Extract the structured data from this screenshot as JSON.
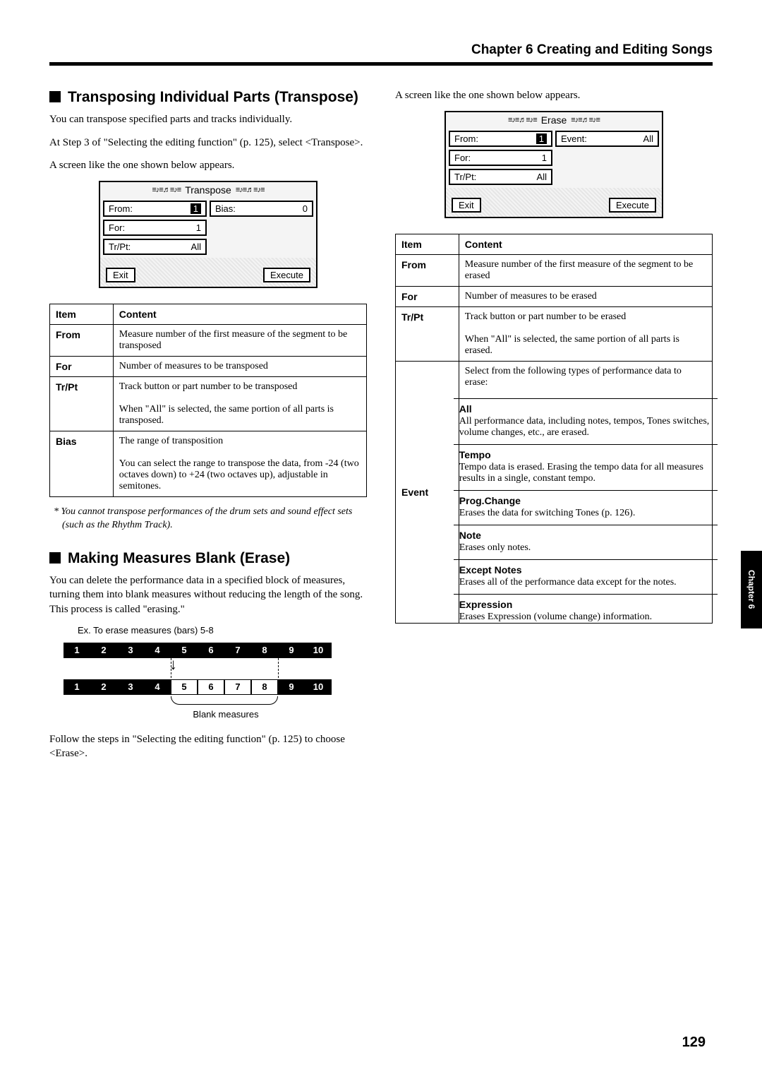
{
  "chapter_heading": "Chapter 6 Creating and Editing Songs",
  "transpose": {
    "heading": "Transposing Individual Parts (Transpose)",
    "intro": "You can transpose specified parts and tracks individually.",
    "step_ref": "At Step 3 of \"Selecting the editing function\" (p. 125), select <Transpose>.",
    "screen_intro": "A screen like the one shown below appears.",
    "lcd": {
      "title": "Transpose",
      "from_label": "From:",
      "from_value": "1",
      "for_label": "For:",
      "for_value": "1",
      "trpt_label": "Tr/Pt:",
      "trpt_value": "All",
      "bias_label": "Bias:",
      "bias_value": "0",
      "exit_label": "Exit",
      "execute_label": "Execute"
    },
    "table_header_item": "Item",
    "table_header_content": "Content",
    "rows": {
      "from": {
        "item": "From",
        "content": "Measure number of the first measure of the segment to be transposed"
      },
      "for": {
        "item": "For",
        "content": "Number of measures to be transposed"
      },
      "trpt": {
        "item": "Tr/Pt",
        "content1": "Track button or part number to be transposed",
        "content2": "When \"All\" is selected, the same portion of all parts is transposed."
      },
      "bias": {
        "item": "Bias",
        "content1": "The range of transposition",
        "content2": "You can select the range to transpose the data, from -24 (two octaves down) to +24 (two octaves up), adjustable in semitones."
      }
    },
    "footnote": "*  You cannot transpose performances of the drum sets and sound effect sets (such as the Rhythm Track)."
  },
  "erase": {
    "heading": "Making Measures Blank (Erase)",
    "intro": "You can delete the performance data in a specified block of measures, turning them into blank measures without reducing the length of the song. This process is called \"erasing.\"",
    "example_caption": "Ex. To erase measures (bars) 5-8",
    "row1": [
      "1",
      "2",
      "3",
      "4",
      "5",
      "6",
      "7",
      "8",
      "9",
      "10"
    ],
    "row2": [
      "1",
      "2",
      "3",
      "4",
      "5",
      "6",
      "7",
      "8",
      "9",
      "10"
    ],
    "brace_label": "Blank measures",
    "follow": "Follow the steps in \"Selecting the editing function\" (p. 125) to choose <Erase>.",
    "screen_intro": "A screen like the one shown below appears.",
    "lcd": {
      "title": "Erase",
      "from_label": "From:",
      "from_value": "1",
      "for_label": "For:",
      "for_value": "1",
      "trpt_label": "Tr/Pt:",
      "trpt_value": "All",
      "event_label": "Event:",
      "event_value": "All",
      "exit_label": "Exit",
      "execute_label": "Execute"
    },
    "table_header_item": "Item",
    "table_header_content": "Content",
    "rows": {
      "from": {
        "item": "From",
        "content": "Measure number of the first measure of the segment to be erased"
      },
      "for": {
        "item": "For",
        "content": "Number of measures to be erased"
      },
      "trpt": {
        "item": "Tr/Pt",
        "content1": "Track button or part number to be erased",
        "content2": "When \"All\" is selected, the same portion of all parts is erased."
      },
      "event": {
        "item": "Event",
        "intro": "Select from the following types of performance data to erase:",
        "all_t": "All",
        "all_d": "All performance data, including notes, tempos, Tones switches, volume changes, etc., are erased.",
        "tempo_t": "Tempo",
        "tempo_d": "Tempo data is erased. Erasing the tempo data for all measures results in a single, constant tempo.",
        "prog_t": "Prog.Change",
        "prog_d": "Erases the data for switching Tones (p. 126).",
        "note_t": "Note",
        "note_d": "Erases only notes.",
        "except_t": "Except Notes",
        "except_d": "Erases all of the performance data except for the notes.",
        "expr_t": "Expression",
        "expr_d": "Erases Expression (volume change) information."
      }
    }
  },
  "side_tab": "Chapter 6",
  "page_number": "129"
}
